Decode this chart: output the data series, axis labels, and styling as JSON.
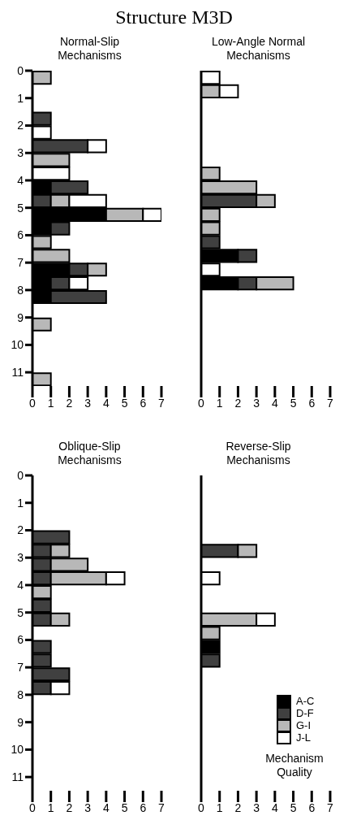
{
  "chart_data": [
    {
      "type": "bar",
      "orientation": "horizontal",
      "stacked": true,
      "title": "Normal-Slip Mechanisms",
      "annotations": [
        "Structure M3D"
      ],
      "x": [
        0.25,
        1.75,
        2.25,
        2.75,
        3.25,
        3.75,
        4.25,
        4.75,
        5.25,
        5.75,
        6.25,
        6.75,
        7.25,
        7.75,
        8.25,
        9.25,
        11.25
      ],
      "series": [
        {
          "color": "#000000",
          "values": [
            null,
            null,
            null,
            null,
            null,
            null,
            1,
            null,
            4,
            1,
            null,
            null,
            2,
            1,
            1,
            null,
            null
          ]
        },
        {
          "color": "#404040",
          "values": [
            null,
            1,
            null,
            3,
            null,
            null,
            2,
            1,
            null,
            1,
            null,
            null,
            1,
            1,
            3,
            null,
            null
          ]
        },
        {
          "color": "#b8b8b8",
          "values": [
            1,
            null,
            null,
            null,
            2,
            null,
            null,
            1,
            2,
            null,
            1,
            2,
            1,
            null,
            null,
            1,
            1
          ]
        },
        {
          "color": "#ffffff",
          "values": [
            null,
            null,
            1,
            1,
            null,
            2,
            null,
            2,
            1,
            null,
            null,
            null,
            null,
            1,
            null,
            null,
            null
          ]
        }
      ],
      "xlim": [
        0,
        7
      ],
      "xticks": [
        0,
        1,
        2,
        3,
        4,
        5,
        6,
        7
      ],
      "ylim": [
        11.5,
        0
      ],
      "yticks": [
        0,
        1,
        2,
        3,
        4,
        5,
        6,
        7,
        8,
        9,
        10,
        11
      ]
    },
    {
      "type": "bar",
      "orientation": "horizontal",
      "stacked": true,
      "title": "Low-Angle Normal Mechanisms",
      "x": [
        0.25,
        0.75,
        3.75,
        4.25,
        4.75,
        5.25,
        5.75,
        6.25,
        6.75,
        7.25,
        7.75
      ],
      "series": [
        {
          "color": "#000000",
          "values": [
            null,
            null,
            null,
            null,
            null,
            null,
            null,
            null,
            2,
            null,
            2
          ]
        },
        {
          "color": "#404040",
          "values": [
            null,
            null,
            null,
            null,
            3,
            null,
            null,
            1,
            1,
            null,
            1
          ]
        },
        {
          "color": "#b8b8b8",
          "values": [
            null,
            1,
            1,
            3,
            1,
            1,
            1,
            null,
            null,
            null,
            2
          ]
        },
        {
          "color": "#ffffff",
          "values": [
            1,
            1,
            null,
            null,
            null,
            null,
            null,
            null,
            null,
            1,
            null
          ]
        }
      ],
      "xlim": [
        0,
        7
      ],
      "xticks": [
        0,
        1,
        2,
        3,
        4,
        5,
        6,
        7
      ],
      "ylim": [
        11.5,
        0
      ],
      "yticks": [
        0,
        1,
        2,
        3,
        4,
        5,
        6,
        7,
        8,
        9,
        10,
        11
      ],
      "tick_labels": "x"
    },
    {
      "type": "bar",
      "orientation": "horizontal",
      "stacked": true,
      "title": "Oblique-Slip Mechanisms",
      "x": [
        2.25,
        2.75,
        3.25,
        3.75,
        4.25,
        4.75,
        5.25,
        6.25,
        6.75,
        7.25,
        7.75
      ],
      "series": [
        {
          "color": "#404040",
          "values": [
            2,
            1,
            1,
            1,
            null,
            1,
            1,
            1,
            1,
            2,
            1
          ]
        },
        {
          "color": "#b8b8b8",
          "values": [
            null,
            1,
            2,
            3,
            1,
            null,
            1,
            null,
            null,
            null,
            null
          ]
        },
        {
          "color": "#ffffff",
          "values": [
            null,
            null,
            null,
            1,
            null,
            null,
            null,
            null,
            null,
            null,
            1
          ]
        }
      ],
      "xlim": [
        0,
        7
      ],
      "xticks": [
        0,
        1,
        2,
        3,
        4,
        5,
        6,
        7
      ],
      "ylim": [
        11.5,
        0
      ],
      "yticks": [
        0,
        1,
        2,
        3,
        4,
        5,
        6,
        7,
        8,
        9,
        10,
        11
      ]
    },
    {
      "type": "bar",
      "orientation": "horizontal",
      "stacked": true,
      "title": "Reverse-Slip Mechanisms",
      "x": [
        2.75,
        3.75,
        5.25,
        5.75,
        6.25,
        6.75
      ],
      "series": [
        {
          "name": "A-C",
          "color": "#000000",
          "values": [
            null,
            null,
            null,
            null,
            1,
            null
          ]
        },
        {
          "name": "D-F",
          "color": "#404040",
          "values": [
            2,
            null,
            null,
            null,
            null,
            1
          ]
        },
        {
          "name": "G-I",
          "color": "#b8b8b8",
          "values": [
            1,
            null,
            3,
            1,
            null,
            null
          ]
        },
        {
          "name": "J-L",
          "color": "#ffffff",
          "values": [
            null,
            1,
            1,
            null,
            null,
            null
          ]
        }
      ],
      "legend": "bottom right",
      "legend_title": "Mechanism Quality",
      "xlim": [
        0,
        7
      ],
      "xticks": [
        0,
        1,
        2,
        3,
        4,
        5,
        6,
        7
      ],
      "ylim": [
        11.5,
        0
      ],
      "yticks": [
        0,
        1,
        2,
        3,
        4,
        5,
        6,
        7,
        8,
        9,
        10,
        11
      ],
      "tick_labels": "x"
    }
  ]
}
